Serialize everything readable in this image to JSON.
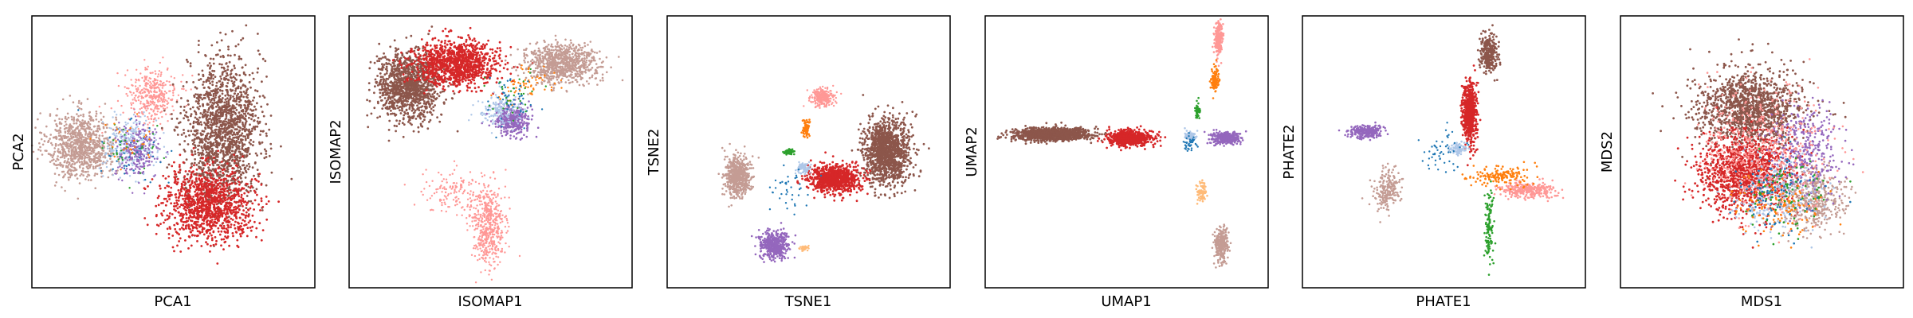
{
  "colors": {
    "blue": "#1f77b4",
    "light_blue": "#aec7e8",
    "orange": "#ff7f0e",
    "light_orange": "#ffbb78",
    "green": "#2ca02c",
    "red": "#d62728",
    "pink": "#ff9896",
    "purple": "#9467bd",
    "brown": "#8c564b",
    "tan": "#c49c94"
  },
  "chart_data": [
    {
      "type": "scatter",
      "title": "",
      "xlabel": "PCA1",
      "ylabel": "PCA2",
      "grid": false,
      "ticks": "none",
      "xlim": [
        -10,
        10
      ],
      "ylim": [
        -10,
        10
      ],
      "clusters": [
        {
          "color": "tan",
          "center": [
            -6.5,
            0.5
          ],
          "spread": [
            2.4,
            2.4
          ],
          "count": 900,
          "size": 1.3
        },
        {
          "color": "light_blue",
          "center": [
            -3,
            0.5
          ],
          "spread": [
            1.8,
            2.0
          ],
          "count": 300,
          "size": 1.2
        },
        {
          "color": "purple",
          "center": [
            -2.5,
            0
          ],
          "spread": [
            1.6,
            2.0
          ],
          "count": 250,
          "size": 1.2
        },
        {
          "color": "pink",
          "center": [
            -1.5,
            4.2
          ],
          "spread": [
            1.8,
            2.0
          ],
          "count": 350,
          "size": 1.2
        },
        {
          "color": "brown",
          "center": [
            3.5,
            1.5
          ],
          "spread": [
            2.6,
            5.2
          ],
          "count": 1600,
          "size": 1.4
        },
        {
          "color": "red",
          "center": [
            2.5,
            -3.8
          ],
          "spread": [
            3.2,
            2.6
          ],
          "count": 1100,
          "size": 1.4
        },
        {
          "color": "blue",
          "center": [
            -3,
            0
          ],
          "spread": [
            2.5,
            2.5
          ],
          "count": 40,
          "size": 1.2
        },
        {
          "color": "green",
          "center": [
            -3,
            0.3
          ],
          "spread": [
            2,
            2
          ],
          "count": 30,
          "size": 1.2
        },
        {
          "color": "orange",
          "center": [
            -3,
            0.3
          ],
          "spread": [
            2,
            2
          ],
          "count": 30,
          "size": 1.2
        }
      ]
    },
    {
      "type": "scatter",
      "title": "",
      "xlabel": "ISOMAP1",
      "ylabel": "ISOMAP2",
      "grid": false,
      "ticks": "none",
      "xlim": [
        -10,
        10
      ],
      "ylim": [
        -10,
        10
      ],
      "clusters": [
        {
          "color": "brown",
          "center": [
            -5.8,
            4.8
          ],
          "spread": [
            2.2,
            2.5
          ],
          "count": 1200,
          "size": 1.4
        },
        {
          "color": "red",
          "center": [
            -2.5,
            6.5
          ],
          "spread": [
            3.0,
            1.6
          ],
          "count": 1100,
          "size": 1.4
        },
        {
          "color": "tan",
          "center": [
            5,
            6.5
          ],
          "spread": [
            2.6,
            1.4
          ],
          "count": 800,
          "size": 1.3
        },
        {
          "color": "purple",
          "center": [
            1.5,
            2.3
          ],
          "spread": [
            1.2,
            1.1
          ],
          "count": 350,
          "size": 1.3
        },
        {
          "color": "pink",
          "center": [
            -0.2,
            -5.5
          ],
          "spread": [
            1.2,
            2.8
          ],
          "count": 500,
          "size": 1.2
        },
        {
          "color": "pink",
          "center": [
            -2.5,
            -3
          ],
          "spread": [
            2.5,
            1.8
          ],
          "count": 150,
          "size": 1.2
        },
        {
          "color": "light_blue",
          "center": [
            0.5,
            3
          ],
          "spread": [
            1.5,
            1.2
          ],
          "count": 150,
          "size": 1.2
        },
        {
          "color": "orange",
          "center": [
            2.5,
            5
          ],
          "spread": [
            2,
            1.5
          ],
          "count": 60,
          "size": 1.2
        },
        {
          "color": "blue",
          "center": [
            1.5,
            4
          ],
          "spread": [
            2,
            2
          ],
          "count": 50,
          "size": 1.2
        },
        {
          "color": "green",
          "center": [
            1.5,
            4
          ],
          "spread": [
            2,
            2
          ],
          "count": 30,
          "size": 1.2
        }
      ]
    },
    {
      "type": "scatter",
      "title": "",
      "xlabel": "TSNE1",
      "ylabel": "TSNE2",
      "grid": false,
      "ticks": "none",
      "xlim": [
        -10,
        10
      ],
      "ylim": [
        -10,
        10
      ],
      "clusters": [
        {
          "color": "brown",
          "center": [
            5.5,
            0
          ],
          "spread": [
            1.6,
            2.4
          ],
          "count": 1300,
          "size": 1.4
        },
        {
          "color": "red",
          "center": [
            1.8,
            -2
          ],
          "spread": [
            1.8,
            1.0
          ],
          "count": 900,
          "size": 1.4
        },
        {
          "color": "tan",
          "center": [
            -5,
            -1.8
          ],
          "spread": [
            0.9,
            1.4
          ],
          "count": 600,
          "size": 1.3
        },
        {
          "color": "purple",
          "center": [
            -2.5,
            -6.8
          ],
          "spread": [
            1.0,
            1.0
          ],
          "count": 450,
          "size": 1.3
        },
        {
          "color": "pink",
          "center": [
            1,
            4
          ],
          "spread": [
            0.8,
            0.6
          ],
          "count": 250,
          "size": 1.2
        },
        {
          "color": "orange",
          "center": [
            -0.2,
            1.7
          ],
          "spread": [
            0.25,
            0.6
          ],
          "count": 80,
          "size": 1.3
        },
        {
          "color": "green",
          "center": [
            -1.4,
            0
          ],
          "spread": [
            0.3,
            0.2
          ],
          "count": 60,
          "size": 1.3
        },
        {
          "color": "light_blue",
          "center": [
            -0.4,
            -1.2
          ],
          "spread": [
            0.5,
            0.4
          ],
          "count": 100,
          "size": 1.2
        },
        {
          "color": "light_orange",
          "center": [
            -0.3,
            -7.1
          ],
          "spread": [
            0.25,
            0.2
          ],
          "count": 40,
          "size": 1.2
        },
        {
          "color": "blue",
          "center": [
            -1.5,
            -3
          ],
          "spread": [
            1.5,
            1.5
          ],
          "count": 40,
          "size": 1.2
        }
      ]
    },
    {
      "type": "scatter",
      "title": "",
      "xlabel": "UMAP1",
      "ylabel": "UMAP2",
      "grid": false,
      "ticks": "none",
      "xlim": [
        -10,
        10
      ],
      "ylim": [
        -10,
        10
      ],
      "clusters": [
        {
          "color": "brown",
          "center": [
            -5.3,
            1.3
          ],
          "spread": [
            2.6,
            0.45
          ],
          "count": 1300,
          "size": 1.4
        },
        {
          "color": "red",
          "center": [
            0.2,
            1
          ],
          "spread": [
            1.5,
            0.55
          ],
          "count": 700,
          "size": 1.4
        },
        {
          "color": "purple",
          "center": [
            7,
            1
          ],
          "spread": [
            1.0,
            0.45
          ],
          "count": 350,
          "size": 1.3
        },
        {
          "color": "pink",
          "center": [
            6.5,
            8.3
          ],
          "spread": [
            0.3,
            1.3
          ],
          "count": 220,
          "size": 1.3
        },
        {
          "color": "orange",
          "center": [
            6.2,
            5.3
          ],
          "spread": [
            0.3,
            0.9
          ],
          "count": 90,
          "size": 1.3
        },
        {
          "color": "tan",
          "center": [
            6.7,
            -6.8
          ],
          "spread": [
            0.45,
            1.3
          ],
          "count": 280,
          "size": 1.3
        },
        {
          "color": "light_orange",
          "center": [
            5.3,
            -3
          ],
          "spread": [
            0.4,
            0.8
          ],
          "count": 70,
          "size": 1.3
        },
        {
          "color": "green",
          "center": [
            5,
            3
          ],
          "spread": [
            0.15,
            0.5
          ],
          "count": 50,
          "size": 1.3
        },
        {
          "color": "light_blue",
          "center": [
            4.5,
            1.2
          ],
          "spread": [
            0.4,
            0.4
          ],
          "count": 70,
          "size": 1.3
        },
        {
          "color": "blue",
          "center": [
            4.5,
            0.6
          ],
          "spread": [
            0.5,
            0.5
          ],
          "count": 40,
          "size": 1.2
        }
      ]
    },
    {
      "type": "scatter",
      "title": "",
      "xlabel": "PHATE1",
      "ylabel": "PHATE2",
      "grid": false,
      "ticks": "none",
      "xlim": [
        -10,
        10
      ],
      "ylim": [
        -10,
        10
      ],
      "clusters": [
        {
          "color": "brown",
          "center": [
            3.2,
            7.3
          ],
          "spread": [
            0.6,
            1.4
          ],
          "count": 260,
          "size": 1.4
        },
        {
          "color": "red",
          "center": [
            1.8,
            2.8
          ],
          "spread": [
            0.5,
            2.2
          ],
          "count": 600,
          "size": 1.4
        },
        {
          "color": "purple",
          "center": [
            -5.5,
            1.5
          ],
          "spread": [
            1.2,
            0.5
          ],
          "count": 250,
          "size": 1.3
        },
        {
          "color": "tan",
          "center": [
            -4,
            -2.8
          ],
          "spread": [
            1.0,
            1.5
          ],
          "count": 200,
          "size": 1.3
        },
        {
          "color": "pink",
          "center": [
            6,
            -2.8
          ],
          "spread": [
            2.0,
            0.6
          ],
          "count": 280,
          "size": 1.3
        },
        {
          "color": "orange",
          "center": [
            4,
            -1.8
          ],
          "spread": [
            2.2,
            0.7
          ],
          "count": 150,
          "size": 1.3
        },
        {
          "color": "green",
          "center": [
            3.2,
            -5.5
          ],
          "spread": [
            0.3,
            2.5
          ],
          "count": 120,
          "size": 1.3
        },
        {
          "color": "light_blue",
          "center": [
            1,
            0.2
          ],
          "spread": [
            0.5,
            0.4
          ],
          "count": 80,
          "size": 1.3
        },
        {
          "color": "blue",
          "center": [
            0,
            0
          ],
          "spread": [
            1.5,
            1.5
          ],
          "count": 50,
          "size": 1.2
        }
      ]
    },
    {
      "type": "scatter",
      "title": "",
      "xlabel": "MDS1",
      "ylabel": "MDS2",
      "grid": false,
      "ticks": "none",
      "xlim": [
        -10,
        10
      ],
      "ylim": [
        -10,
        10
      ],
      "clusters": [
        {
          "color": "brown",
          "center": [
            -0.8,
            3.2
          ],
          "spread": [
            3.6,
            2.8
          ],
          "count": 1300,
          "size": 1.4
        },
        {
          "color": "red",
          "center": [
            -1.2,
            -1.5
          ],
          "spread": [
            3.2,
            2.8
          ],
          "count": 1200,
          "size": 1.4
        },
        {
          "color": "tan",
          "center": [
            3.5,
            -3.5
          ],
          "spread": [
            2.2,
            2.2
          ],
          "count": 450,
          "size": 1.3
        },
        {
          "color": "purple",
          "center": [
            3,
            0
          ],
          "spread": [
            2.5,
            3.5
          ],
          "count": 350,
          "size": 1.3
        },
        {
          "color": "pink",
          "center": [
            0,
            0
          ],
          "spread": [
            4.5,
            4.5
          ],
          "count": 500,
          "size": 1.3
        },
        {
          "color": "light_blue",
          "center": [
            1,
            -3
          ],
          "spread": [
            3,
            3
          ],
          "count": 200,
          "size": 1.3
        },
        {
          "color": "orange",
          "center": [
            1,
            -4
          ],
          "spread": [
            3,
            2.5
          ],
          "count": 120,
          "size": 1.3
        },
        {
          "color": "blue",
          "center": [
            1,
            -3
          ],
          "spread": [
            3,
            3
          ],
          "count": 100,
          "size": 1.3
        },
        {
          "color": "green",
          "center": [
            2,
            -3
          ],
          "spread": [
            3,
            3
          ],
          "count": 80,
          "size": 1.3
        }
      ]
    }
  ]
}
